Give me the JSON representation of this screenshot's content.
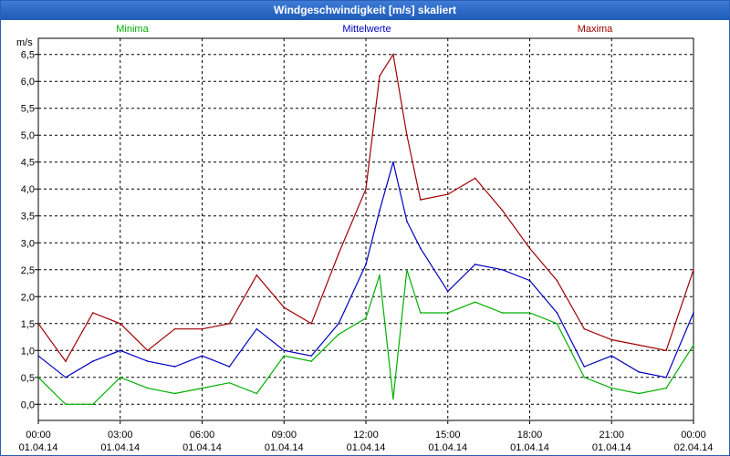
{
  "window": {
    "title": "Windgeschwindigkeit [m/s] skaliert"
  },
  "chart_data": {
    "type": "line",
    "title": "Windgeschwindigkeit [m/s] skaliert",
    "ylabel": "m/s",
    "xlabel": "",
    "ylim": [
      -0.3,
      6.8
    ],
    "xlim_hours": [
      0,
      24
    ],
    "yticks": [
      0,
      0.5,
      1,
      1.5,
      2,
      2.5,
      3,
      3.5,
      4,
      4.5,
      5,
      5.5,
      6,
      6.5
    ],
    "ytick_labels": [
      "0,0",
      "0,5",
      "1,0",
      "1,5",
      "2,0",
      "2,5",
      "3,0",
      "3,5",
      "4,0",
      "4,5",
      "5,0",
      "5,5",
      "6,0",
      "6,5"
    ],
    "xtick_hours": [
      0,
      3,
      6,
      9,
      12,
      15,
      18,
      21,
      24
    ],
    "xtick_times": [
      "00:00",
      "03:00",
      "06:00",
      "09:00",
      "12:00",
      "15:00",
      "18:00",
      "21:00",
      "00:00"
    ],
    "xtick_dates": [
      "01.04.14",
      "01.04.14",
      "01.04.14",
      "01.04.14",
      "01.04.14",
      "01.04.14",
      "01.04.14",
      "01.04.14",
      "02.04.14"
    ],
    "grid": true,
    "legend_position": "top",
    "colors": {
      "Minima": "#00b000",
      "Mittelwerte": "#0000c0",
      "Maxima": "#a00000",
      "grid": "#000000"
    },
    "x_hours": [
      0,
      1,
      2,
      3,
      4,
      5,
      6,
      7,
      8,
      9,
      10,
      11,
      12,
      12.5,
      13,
      13.5,
      14,
      15,
      16,
      17,
      18,
      19,
      20,
      21,
      22,
      23,
      24
    ],
    "series": [
      {
        "name": "Minima",
        "values": [
          0.5,
          0.0,
          0.0,
          0.5,
          0.3,
          0.2,
          0.3,
          0.4,
          0.2,
          0.9,
          0.8,
          1.3,
          1.6,
          2.4,
          0.1,
          2.5,
          1.7,
          1.7,
          1.9,
          1.7,
          1.7,
          1.5,
          0.5,
          0.3,
          0.2,
          0.3,
          1.1
        ]
      },
      {
        "name": "Mittelwerte",
        "values": [
          0.9,
          0.5,
          0.8,
          1.0,
          0.8,
          0.7,
          0.9,
          0.7,
          1.4,
          1.0,
          0.9,
          1.5,
          2.6,
          3.6,
          4.5,
          3.4,
          2.9,
          2.1,
          2.6,
          2.5,
          2.3,
          1.7,
          0.7,
          0.9,
          0.6,
          0.5,
          1.7
        ]
      },
      {
        "name": "Maxima",
        "values": [
          1.5,
          0.8,
          1.7,
          1.5,
          1.0,
          1.4,
          1.4,
          1.5,
          2.4,
          1.8,
          1.5,
          2.8,
          4.0,
          6.1,
          6.5,
          5.0,
          3.8,
          3.9,
          4.2,
          3.6,
          2.9,
          2.3,
          1.4,
          1.2,
          1.1,
          1.0,
          2.5
        ]
      }
    ]
  }
}
